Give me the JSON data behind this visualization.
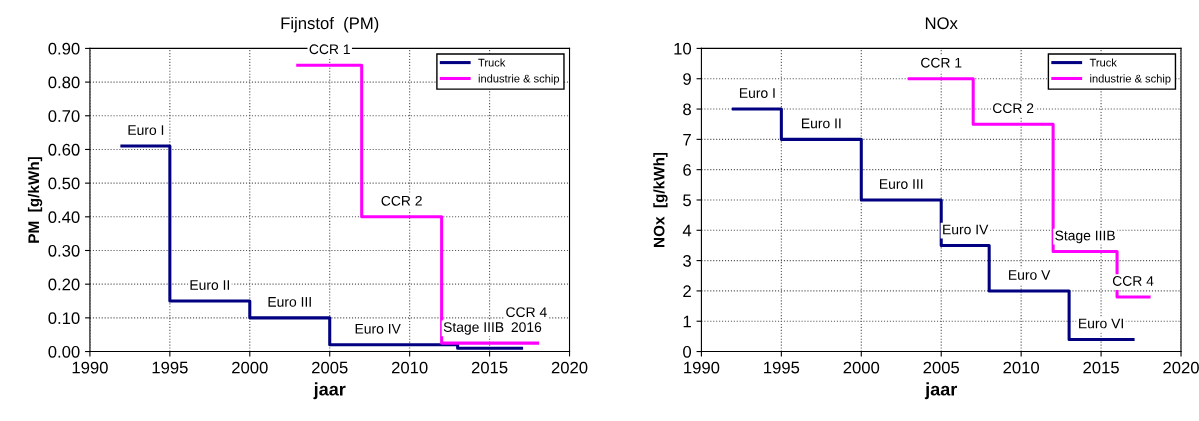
{
  "chart_data": [
    {
      "type": "step",
      "title": "Fijnstof  (PM)",
      "xlabel": "jaar",
      "ylabel": "PM  [g/kWh]",
      "xlim": [
        1990,
        2020
      ],
      "xticks": [
        1990,
        1995,
        2000,
        2005,
        2010,
        2015,
        2020
      ],
      "ylim": [
        0,
        0.9
      ],
      "yticks": [
        {
          "value": 0,
          "label": "0.00"
        },
        {
          "value": 0.1,
          "label": "0.10"
        },
        {
          "value": 0.2,
          "label": "0.20"
        },
        {
          "value": 0.3,
          "label": "0.30"
        },
        {
          "value": 0.4,
          "label": "0.40"
        },
        {
          "value": 0.5,
          "label": "0.50"
        },
        {
          "value": 0.6,
          "label": "0.60"
        },
        {
          "value": 0.7,
          "label": "0.70"
        },
        {
          "value": 0.8,
          "label": "0.80"
        },
        {
          "value": 0.9,
          "label": "0.90"
        }
      ],
      "grid": true,
      "legend": "top right",
      "marker": "none",
      "line_style": "solid",
      "series": [
        {
          "name": "Truck",
          "color": "#000080",
          "x": [
            1992,
            1995,
            2000,
            2005,
            2013,
            2017
          ],
          "values": [
            0.61,
            0.15,
            0.1,
            0.02,
            0.01,
            0.01
          ]
        },
        {
          "name": "industrie & schip",
          "color": "#ff00ff",
          "x": [
            2003,
            2007,
            2012,
            2018
          ],
          "values": [
            0.85,
            0.4,
            0.025,
            0.025
          ]
        }
      ],
      "annotations": [
        {
          "text": "Euro I",
          "x": 1993.5,
          "y": 0.61
        },
        {
          "text": "Euro II",
          "x": 1997.5,
          "y": 0.15
        },
        {
          "text": "Euro III",
          "x": 2002.5,
          "y": 0.1
        },
        {
          "text": "Euro IV",
          "x": 2008,
          "y": 0.02
        },
        {
          "text": "CCR 1",
          "x": 2005,
          "y": 0.85
        },
        {
          "text": "CCR 2",
          "x": 2009.5,
          "y": 0.4
        },
        {
          "text": "Stage IIIB",
          "x": 2014,
          "y": 0.025
        },
        {
          "text": "CCR 4\n2016",
          "x": 2017.3,
          "y": 0.025
        }
      ]
    },
    {
      "type": "step",
      "title": "NOx",
      "xlabel": "jaar",
      "ylabel": "NOx  [g/kWh]",
      "xlim": [
        1990,
        2020
      ],
      "xticks": [
        1990,
        1995,
        2000,
        2005,
        2010,
        2015,
        2020
      ],
      "ylim": [
        0,
        10
      ],
      "yticks": [
        0,
        1,
        2,
        3,
        4,
        5,
        6,
        7,
        8,
        9,
        10
      ],
      "grid": true,
      "legend": "top right",
      "marker": "none",
      "line_style": "solid",
      "series": [
        {
          "name": "Truck",
          "color": "#000080",
          "x": [
            1992,
            1995,
            2000,
            2005,
            2008,
            2013,
            2017
          ],
          "values": [
            8,
            7,
            5,
            3.5,
            2,
            0.4,
            0.4
          ]
        },
        {
          "name": "industrie & schip",
          "color": "#ff00ff",
          "x": [
            2003,
            2007,
            2012,
            2016,
            2018
          ],
          "values": [
            9,
            7.5,
            3.3,
            1.8,
            1.8
          ]
        }
      ],
      "annotations": [
        {
          "text": "Euro I",
          "x": 1993.5,
          "y": 8
        },
        {
          "text": "Euro II",
          "x": 1997.5,
          "y": 7
        },
        {
          "text": "Euro III",
          "x": 2002.5,
          "y": 5
        },
        {
          "text": "Euro IV",
          "x": 2006.5,
          "y": 3.5
        },
        {
          "text": "Euro V",
          "x": 2010.5,
          "y": 2
        },
        {
          "text": "Euro VI",
          "x": 2015,
          "y": 0.4
        },
        {
          "text": "CCR 1",
          "x": 2005,
          "y": 9
        },
        {
          "text": "CCR 2",
          "x": 2009.5,
          "y": 7.5
        },
        {
          "text": "Stage IIIB",
          "x": 2014,
          "y": 3.3
        },
        {
          "text": "CCR 4",
          "x": 2017,
          "y": 1.8
        }
      ]
    }
  ]
}
